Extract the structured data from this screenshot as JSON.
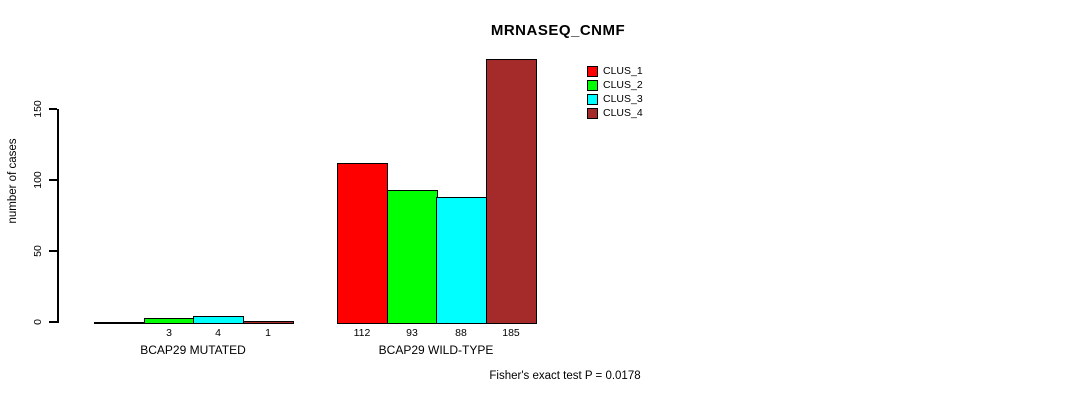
{
  "chart_data": {
    "type": "bar",
    "title": "MRNASEQ_CNMF",
    "xlabel": "",
    "ylabel": "number of cases",
    "yticks": [
      0,
      50,
      100,
      150
    ],
    "ylim": [
      0,
      190
    ],
    "grid": false,
    "legend_position": "top-right",
    "categories": [
      "BCAP29 MUTATED",
      "BCAP29 WILD-TYPE"
    ],
    "series": [
      {
        "name": "CLUS_1",
        "color": "#ff0000",
        "values": [
          0,
          112
        ],
        "bar_labels": [
          "",
          "112"
        ]
      },
      {
        "name": "CLUS_2",
        "color": "#00ff00",
        "values": [
          3,
          93
        ],
        "bar_labels": [
          "3",
          "93"
        ]
      },
      {
        "name": "CLUS_3",
        "color": "#00ffff",
        "values": [
          4,
          88
        ],
        "bar_labels": [
          "4",
          "88"
        ]
      },
      {
        "name": "CLUS_4",
        "color": "#a52a2a",
        "values": [
          1,
          185
        ],
        "bar_labels": [
          "1",
          "185"
        ]
      }
    ],
    "footnote": "Fisher's exact test P = 0.0178"
  },
  "colors": {
    "background": "#ffffff",
    "axis": "#000000",
    "text": "#000000"
  }
}
